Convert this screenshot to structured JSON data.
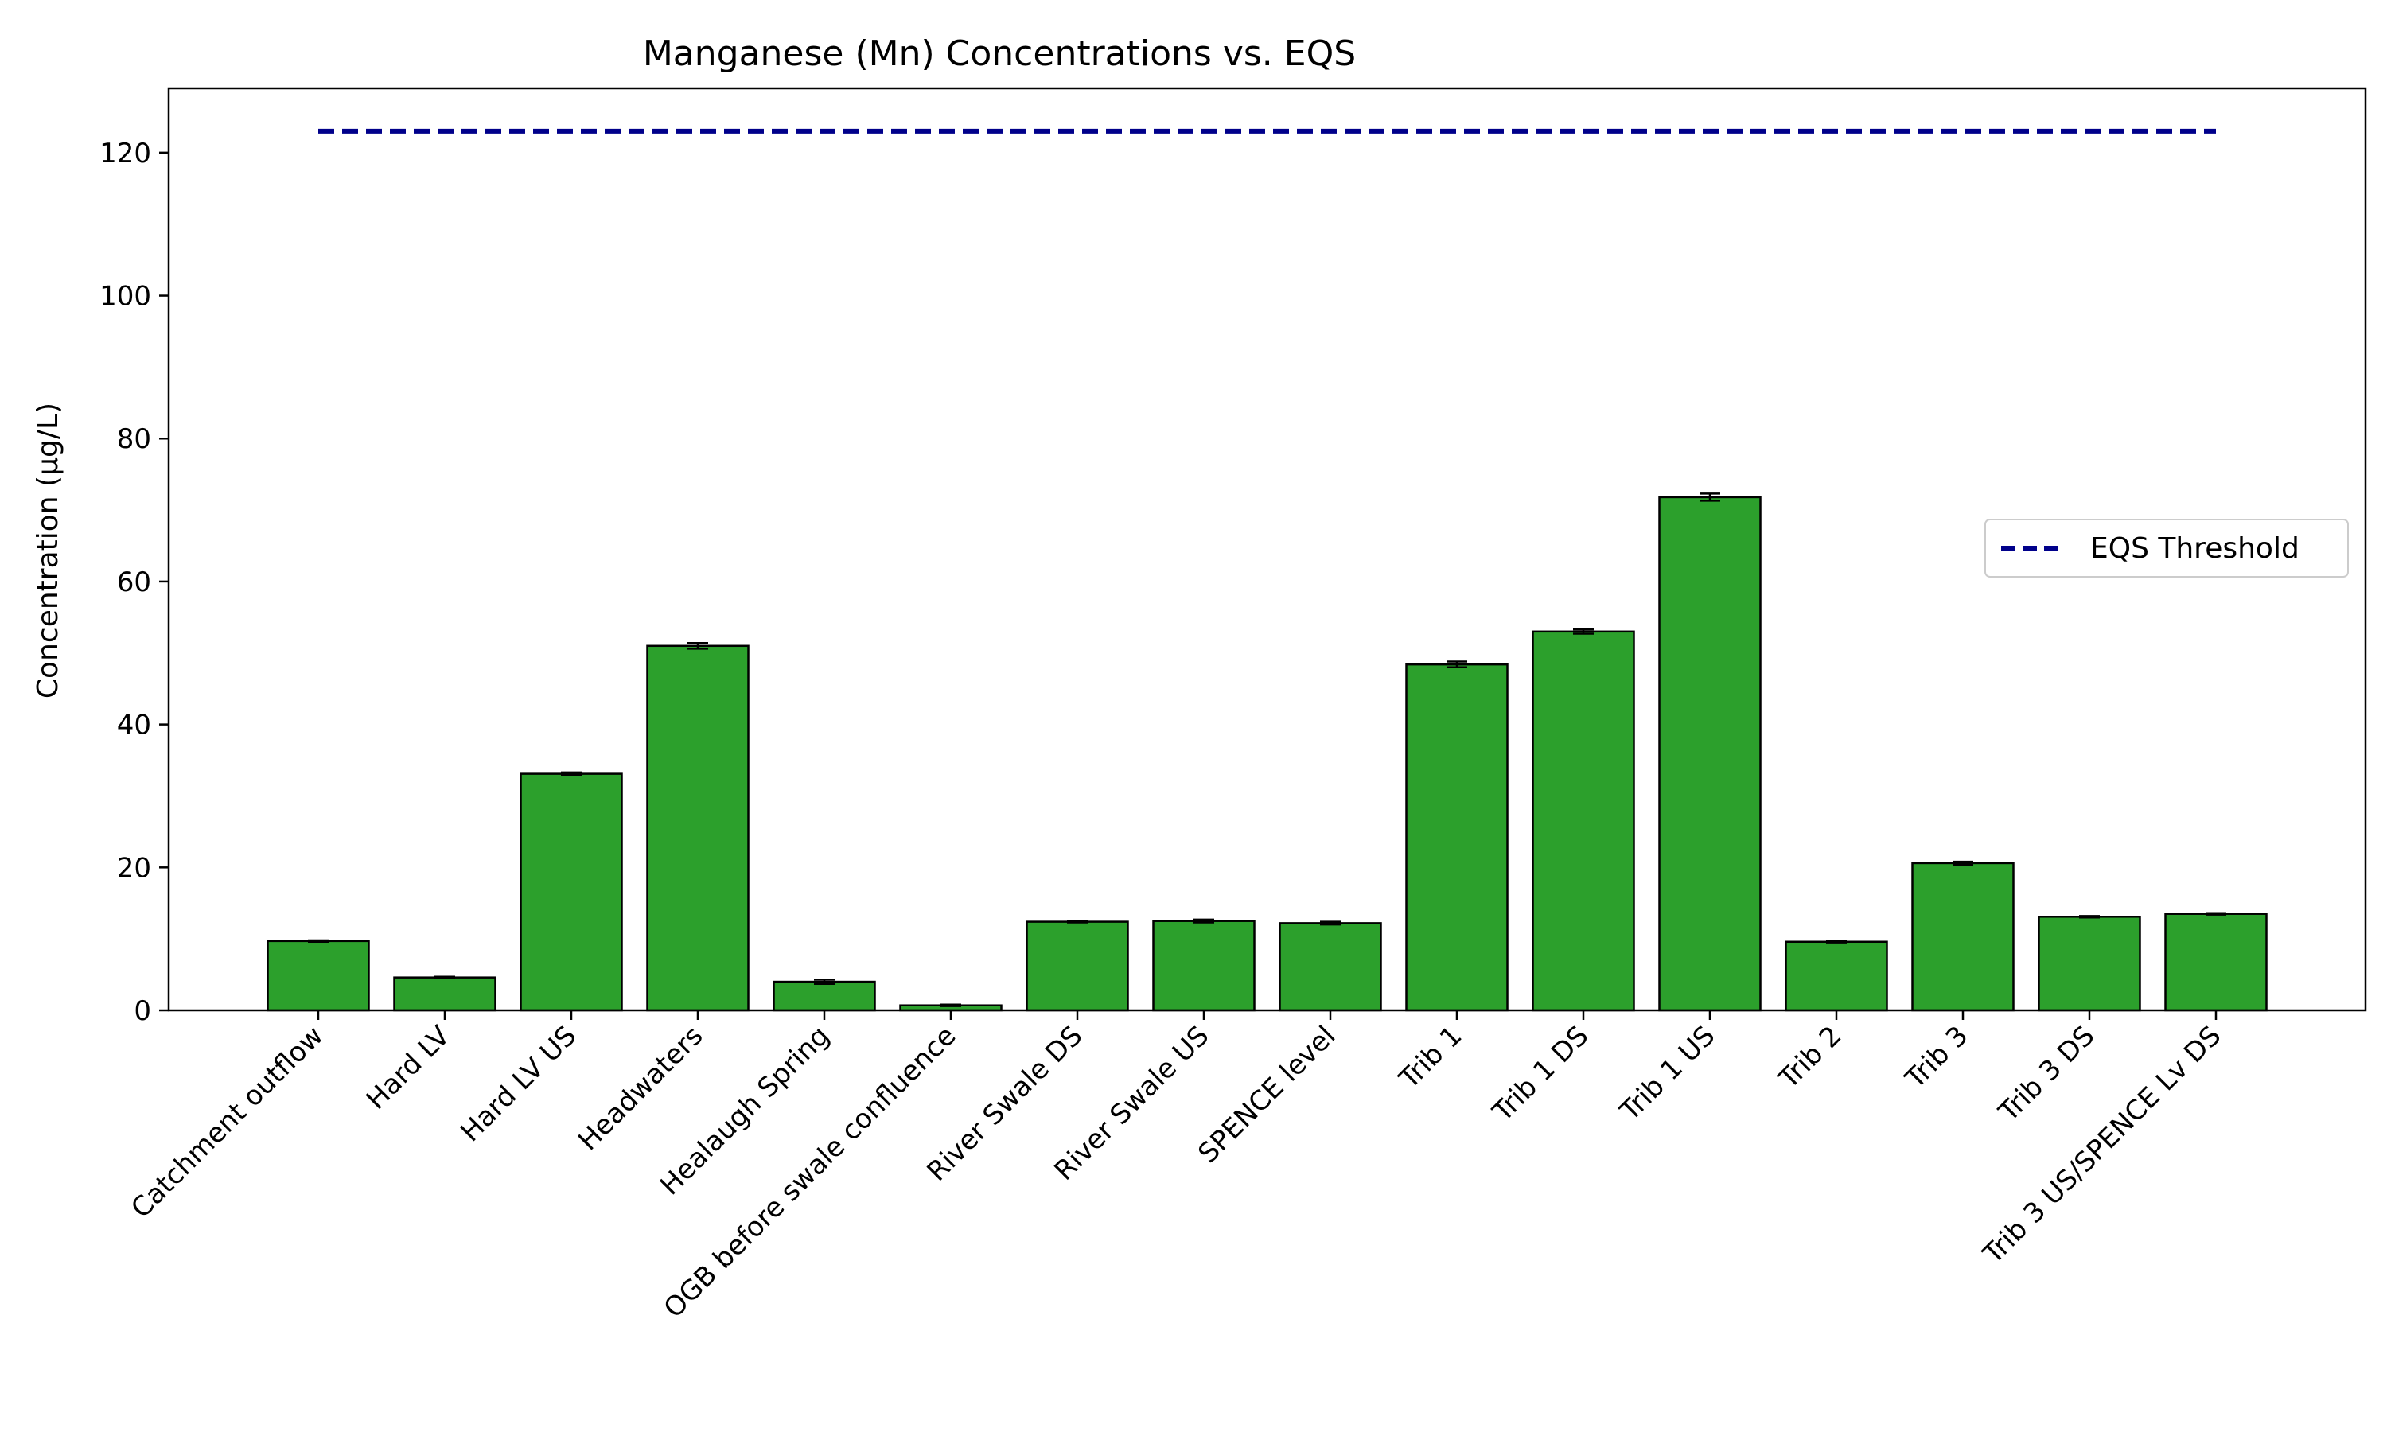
{
  "chart_data": {
    "type": "bar",
    "title": "Manganese (Mn) Concentrations vs. EQS",
    "xlabel": "",
    "ylabel": "Concentration (µg/L)",
    "ylim": [
      0,
      129
    ],
    "yticks": [
      0,
      20,
      40,
      60,
      80,
      100,
      120
    ],
    "categories": [
      "Catchment outflow",
      "Hard LV",
      "Hard LV US",
      "Headwaters",
      "Healaugh Spring",
      "OGB before swale confluence",
      "River Swale DS",
      "River Swale US",
      "SPENCE level",
      "Trib 1",
      "Trib 1 DS",
      "Trib 1 US",
      "Trib 2",
      "Trib 3",
      "Trib 3 DS",
      "Trib 3 US/SPENCE Lv DS"
    ],
    "values": [
      9.7,
      4.6,
      33.1,
      51.0,
      4.0,
      0.7,
      12.4,
      12.5,
      12.2,
      48.4,
      53.0,
      71.8,
      9.6,
      20.6,
      13.1,
      13.5
    ],
    "errors": [
      0.1,
      0.1,
      0.2,
      0.4,
      0.3,
      0.1,
      0.1,
      0.2,
      0.2,
      0.4,
      0.3,
      0.5,
      0.1,
      0.2,
      0.1,
      0.1
    ],
    "bar_color": "#2ca02c",
    "threshold": {
      "name": "EQS Threshold",
      "value": 123,
      "color": "#00008b",
      "style": "dashed"
    },
    "legend_position": "center-right",
    "grid": false
  }
}
